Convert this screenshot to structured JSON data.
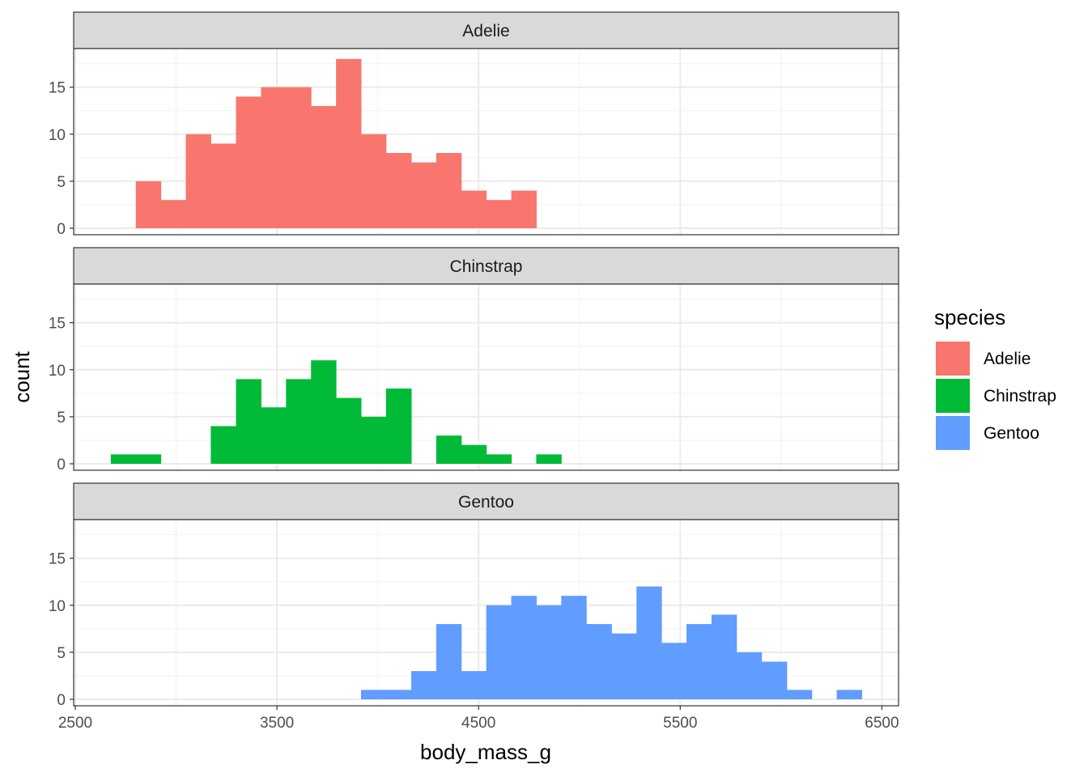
{
  "chart_data": {
    "type": "bar",
    "subtype": "faceted histogram",
    "xlabel": "body_mass_g",
    "ylabel": "count",
    "xlim": [
      2500,
      6500
    ],
    "ylim": [
      0,
      18
    ],
    "xticks": [
      2500,
      3500,
      4500,
      5500,
      6500
    ],
    "yticks": [
      0,
      5,
      10,
      15
    ],
    "grid": true,
    "bin_width": 124.1,
    "legend": {
      "title": "species",
      "position": "right",
      "entries": [
        {
          "name": "Adelie",
          "color": "#F8766D"
        },
        {
          "name": "Chinstrap",
          "color": "#00BA38"
        },
        {
          "name": "Gentoo",
          "color": "#619CFF"
        }
      ]
    },
    "facets": [
      {
        "name": "Adelie",
        "color": "#F8766D",
        "bins": [
          {
            "x0": 2800,
            "x1": 2924,
            "count": 5
          },
          {
            "x0": 2924,
            "x1": 3048,
            "count": 3
          },
          {
            "x0": 3048,
            "x1": 3172,
            "count": 10
          },
          {
            "x0": 3172,
            "x1": 3297,
            "count": 9
          },
          {
            "x0": 3297,
            "x1": 3421,
            "count": 14
          },
          {
            "x0": 3421,
            "x1": 3545,
            "count": 15
          },
          {
            "x0": 3545,
            "x1": 3669,
            "count": 15
          },
          {
            "x0": 3669,
            "x1": 3793,
            "count": 13
          },
          {
            "x0": 3793,
            "x1": 3917,
            "count": 18
          },
          {
            "x0": 3917,
            "x1": 4041,
            "count": 10
          },
          {
            "x0": 4041,
            "x1": 4166,
            "count": 8
          },
          {
            "x0": 4166,
            "x1": 4290,
            "count": 7
          },
          {
            "x0": 4290,
            "x1": 4414,
            "count": 8
          },
          {
            "x0": 4414,
            "x1": 4538,
            "count": 4
          },
          {
            "x0": 4538,
            "x1": 4662,
            "count": 3
          },
          {
            "x0": 4662,
            "x1": 4786,
            "count": 4
          }
        ]
      },
      {
        "name": "Chinstrap",
        "color": "#00BA38",
        "bins": [
          {
            "x0": 2676,
            "x1": 2800,
            "count": 1
          },
          {
            "x0": 2800,
            "x1": 2924,
            "count": 1
          },
          {
            "x0": 3172,
            "x1": 3297,
            "count": 4
          },
          {
            "x0": 3297,
            "x1": 3421,
            "count": 9
          },
          {
            "x0": 3421,
            "x1": 3545,
            "count": 6
          },
          {
            "x0": 3545,
            "x1": 3669,
            "count": 9
          },
          {
            "x0": 3669,
            "x1": 3793,
            "count": 11
          },
          {
            "x0": 3793,
            "x1": 3917,
            "count": 7
          },
          {
            "x0": 3917,
            "x1": 4041,
            "count": 5
          },
          {
            "x0": 4041,
            "x1": 4166,
            "count": 8
          },
          {
            "x0": 4290,
            "x1": 4414,
            "count": 3
          },
          {
            "x0": 4414,
            "x1": 4538,
            "count": 2
          },
          {
            "x0": 4538,
            "x1": 4662,
            "count": 1
          },
          {
            "x0": 4786,
            "x1": 4910,
            "count": 1
          }
        ]
      },
      {
        "name": "Gentoo",
        "color": "#619CFF",
        "bins": [
          {
            "x0": 3917,
            "x1": 4041,
            "count": 1
          },
          {
            "x0": 4041,
            "x1": 4166,
            "count": 1
          },
          {
            "x0": 4166,
            "x1": 4290,
            "count": 3
          },
          {
            "x0": 4290,
            "x1": 4414,
            "count": 8
          },
          {
            "x0": 4414,
            "x1": 4538,
            "count": 3
          },
          {
            "x0": 4538,
            "x1": 4662,
            "count": 10
          },
          {
            "x0": 4662,
            "x1": 4786,
            "count": 11
          },
          {
            "x0": 4786,
            "x1": 4910,
            "count": 10
          },
          {
            "x0": 4910,
            "x1": 5034,
            "count": 11
          },
          {
            "x0": 5034,
            "x1": 5159,
            "count": 8
          },
          {
            "x0": 5159,
            "x1": 5283,
            "count": 7
          },
          {
            "x0": 5283,
            "x1": 5407,
            "count": 12
          },
          {
            "x0": 5407,
            "x1": 5531,
            "count": 6
          },
          {
            "x0": 5531,
            "x1": 5655,
            "count": 8
          },
          {
            "x0": 5655,
            "x1": 5779,
            "count": 9
          },
          {
            "x0": 5779,
            "x1": 5903,
            "count": 5
          },
          {
            "x0": 5903,
            "x1": 6028,
            "count": 4
          },
          {
            "x0": 6028,
            "x1": 6152,
            "count": 1
          },
          {
            "x0": 6276,
            "x1": 6400,
            "count": 1
          }
        ]
      }
    ]
  }
}
